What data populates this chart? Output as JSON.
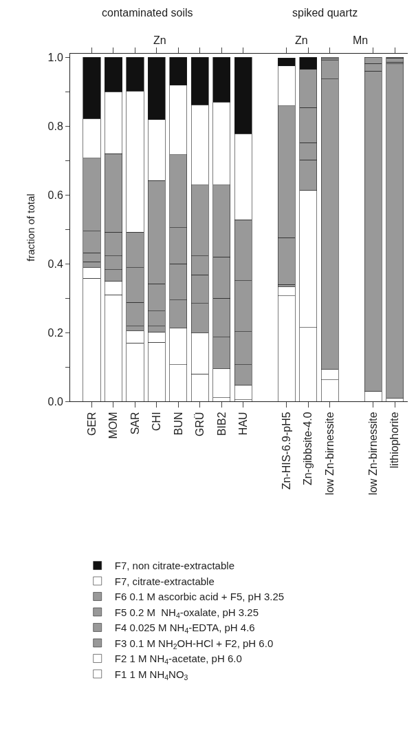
{
  "chart_data": {
    "type": "bar",
    "stacked": true,
    "ylabel": "fraction of total",
    "annotations": [
      "contaminated soils",
      "Zn",
      "spiked quartz",
      "Zn",
      "Mn"
    ],
    "categories": [
      "GER",
      "MOM",
      "SAR",
      "CHI",
      "BUN",
      "GRÜ",
      "BIB2",
      "HAU",
      null,
      "Zn-HIS-6.9-pH5",
      "Zn-gibbsite-4.0",
      "low Zn-birnessite",
      null,
      "low Zn-birnessite",
      "lithiophorite"
    ],
    "series": [
      {
        "name": "F1 1 M NH$_{4}$NO$_{3}$",
        "color": "#ffffff",
        "values": [
          0.358,
          0.31,
          0.17,
          0.172,
          0.107,
          0.08,
          0.011,
          0.005,
          null,
          0.307,
          0.215,
          0.063,
          null,
          0.03,
          0.009
        ]
      },
      {
        "name": "F2 1 M NH$_{4}$-acetate, pH 6.0",
        "color": "#ffffff",
        "values": [
          0.031,
          0.04,
          0.035,
          0.03,
          0.106,
          0.119,
          0.084,
          0.043,
          null,
          0.026,
          0.399,
          0.03,
          null,
          0,
          0
        ]
      },
      {
        "name": "F3 0.1 M NH$_{2}$OH-HCl + F2, pH 6.0",
        "color": "#999999",
        "values": [
          0.017,
          0.033,
          0.014,
          0.017,
          0.082,
          0.086,
          0.092,
          0.059,
          null,
          null,
          0.088,
          0.844,
          null,
          0.93,
          0.972
        ]
      },
      {
        "name": "F4 0.025 M NH$_{4}$-EDTA, pH 4.6",
        "color": "#999999",
        "values": [
          0.026,
          0.04,
          0.069,
          0.044,
          0.105,
          0.083,
          0.113,
          0.096,
          null,
          0.007,
          0.05,
          0.054,
          null,
          0.022,
          0.005
        ]
      },
      {
        "name": "F5 0.2 M  NH$_{4}$-oxalate, pH 3.25",
        "color": "#999999",
        "values": [
          0.063,
          0.069,
          0.101,
          0.079,
          0.105,
          0.055,
          0.12,
          0.148,
          null,
          0.136,
          0.102,
          0.004,
          null,
          0.018,
          0.012
        ]
      },
      {
        "name": "F6 0.1 M ascorbic acid + F5, pH 3.25",
        "color": "#999999",
        "values": [
          0.212,
          0.228,
          0.103,
          0.3,
          0.212,
          0.206,
          0.209,
          0.177,
          null,
          0.383,
          0.111,
          0.005,
          null,
          0,
          0.002
        ]
      },
      {
        "name": "F7, citrate-extractable",
        "color": "#ffffff",
        "values": [
          0.115,
          0.18,
          0.41,
          0.177,
          0.202,
          0.233,
          0.241,
          0.25,
          null,
          0.116,
          0,
          0,
          null,
          0,
          0
        ]
      },
      {
        "name": "F7, non citrate-extractable",
        "color": "#111111",
        "values": [
          0.178,
          0.1,
          0.098,
          0.181,
          0.081,
          0.138,
          0.13,
          0.222,
          null,
          0.023,
          0.035,
          0,
          null,
          0,
          0
        ]
      }
    ],
    "ylim": [
      0,
      1.01
    ],
    "yticks": [
      {
        "value": 0,
        "label": "0.0"
      },
      {
        "value": 0.1,
        "label": null
      },
      {
        "value": 0.2,
        "label": "0.2"
      },
      {
        "value": 0.3,
        "label": null
      },
      {
        "value": 0.4,
        "label": "0.4"
      },
      {
        "value": 0.5,
        "label": null
      },
      {
        "value": 0.6,
        "label": "0.6"
      },
      {
        "value": 0.7,
        "label": null
      },
      {
        "value": 0.8,
        "label": "0.8"
      },
      {
        "value": 0.9,
        "label": null
      },
      {
        "value": 1,
        "label": "1.0"
      }
    ],
    "grid": false,
    "legend": "bottom"
  }
}
